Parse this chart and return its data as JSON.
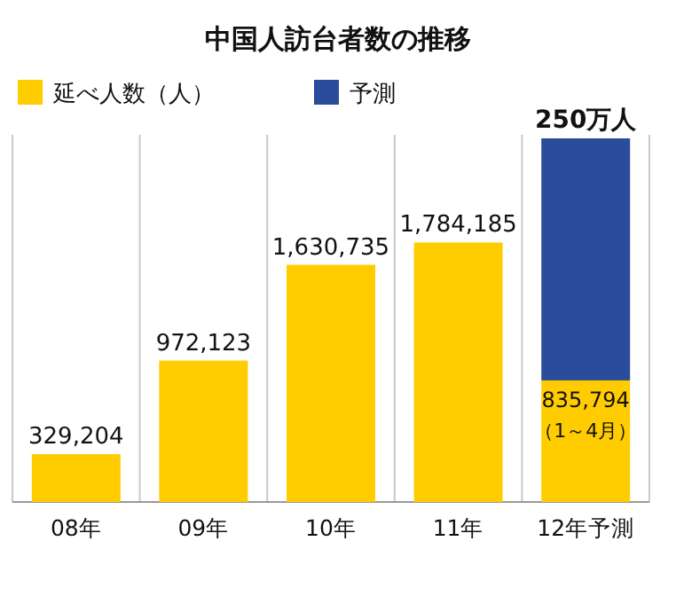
{
  "chart_data": {
    "type": "bar",
    "stacked": true,
    "title": "中国人訪台者数の推移",
    "categories": [
      "08年",
      "09年",
      "10年",
      "11年",
      "12年予測"
    ],
    "series": [
      {
        "name": "延べ人数（人）",
        "color": "#ffcc00",
        "values": [
          329204,
          972123,
          1630735,
          1784185,
          835794
        ],
        "value_labels": [
          "329,204",
          "972,123",
          "1,630,735",
          "1,784,185",
          "835,794"
        ]
      },
      {
        "name": "予測",
        "color": "#2b4c9b",
        "values": [
          null,
          null,
          null,
          null,
          1664206
        ]
      }
    ],
    "annotations": [
      {
        "text": "（1～4月）",
        "x": "12年予測",
        "y": 835794
      },
      {
        "text": "250万人",
        "x": "12年予測",
        "y": 2500000
      }
    ],
    "grid": "x",
    "legend": "top"
  }
}
